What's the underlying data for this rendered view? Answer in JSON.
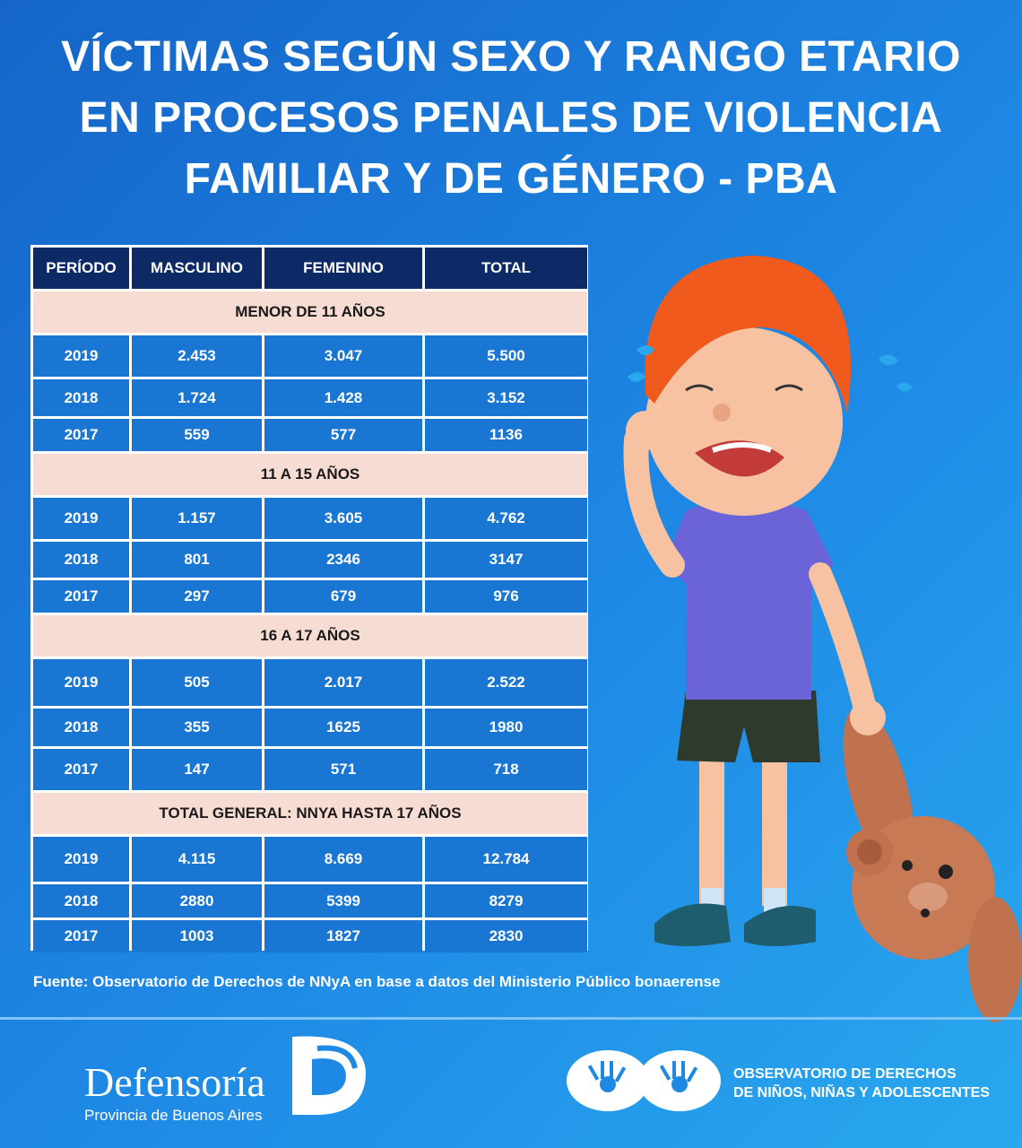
{
  "title": {
    "line1": "VÍCTIMAS SEGÚN SEXO Y RANGO ETARIO",
    "line2": "EN PROCESOS PENALES DE VIOLENCIA",
    "line3": "FAMILIAR Y DE GÉNERO - PBA"
  },
  "table": {
    "headers": [
      "PERÍODO",
      "MASCULINO",
      "FEMENINO",
      "TOTAL"
    ],
    "sections": [
      {
        "label": "MENOR DE 11 AÑOS",
        "rows": [
          [
            "2019",
            "2.453",
            "3.047",
            "5.500"
          ],
          [
            "2018",
            "1.724",
            "1.428",
            "3.152"
          ],
          [
            "2017",
            "559",
            "577",
            "1136"
          ]
        ]
      },
      {
        "label": "11 A 15 AÑOS",
        "rows": [
          [
            "2019",
            "1.157",
            "3.605",
            "4.762"
          ],
          [
            "2018",
            "801",
            "2346",
            "3147"
          ],
          [
            "2017",
            "297",
            "679",
            "976"
          ]
        ]
      },
      {
        "label": "16 A 17 AÑOS",
        "rows": [
          [
            "2019",
            "505",
            "2.017",
            "2.522"
          ],
          [
            "2018",
            "355",
            "1625",
            "1980"
          ],
          [
            "2017",
            "147",
            "571",
            "718"
          ]
        ]
      },
      {
        "label": "TOTAL GENERAL: NNYA HASTA 17 AÑOS",
        "rows": [
          [
            "2019",
            "4.115",
            "8.669",
            "12.784"
          ],
          [
            "2018",
            "2880",
            "5399",
            "8279"
          ],
          [
            "2017",
            "1003",
            "1827",
            "2830"
          ]
        ]
      }
    ]
  },
  "source": "Fuente: Observatorio de Derechos de NNyA en base a datos del Ministerio Público bonaerense",
  "footer": {
    "logo_name": "Defensoría",
    "logo_sub": "Provincia de Buenos Aires",
    "observatorio_line1": "OBSERVATORIO DE DERECHOS",
    "observatorio_line2": "DE NIÑOS, NIÑAS Y ADOLESCENTES"
  },
  "colors": {
    "background": "#1e88e5",
    "header_cell": "#0d2a66",
    "data_cell": "#1976d2",
    "section_row": "#f7dcd3"
  }
}
